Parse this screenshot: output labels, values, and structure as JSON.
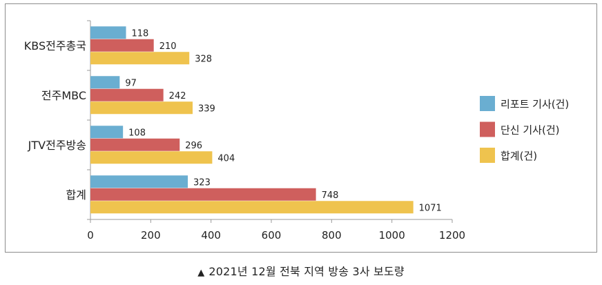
{
  "chart_data": {
    "type": "bar",
    "orientation": "horizontal",
    "categories": [
      "KBS전주총국",
      "전주MBC",
      "JTV전주방송",
      "합계"
    ],
    "series": [
      {
        "name": "리포트 기사(건)",
        "color": "#6aaed1",
        "values": [
          118,
          97,
          108,
          323
        ]
      },
      {
        "name": "단신 기사(건)",
        "color": "#cf5f5d",
        "values": [
          210,
          242,
          296,
          748
        ]
      },
      {
        "name": "합계(건)",
        "color": "#efc34e",
        "values": [
          328,
          339,
          404,
          1071
        ]
      }
    ],
    "xlim": [
      0,
      1200
    ],
    "xticks": [
      0,
      200,
      400,
      600,
      800,
      1000,
      1200
    ],
    "legend_position": "right",
    "grid": false
  },
  "caption": {
    "marker": "▲",
    "text": "2021년 12월 전북 지역 방송 3사 보도량"
  }
}
